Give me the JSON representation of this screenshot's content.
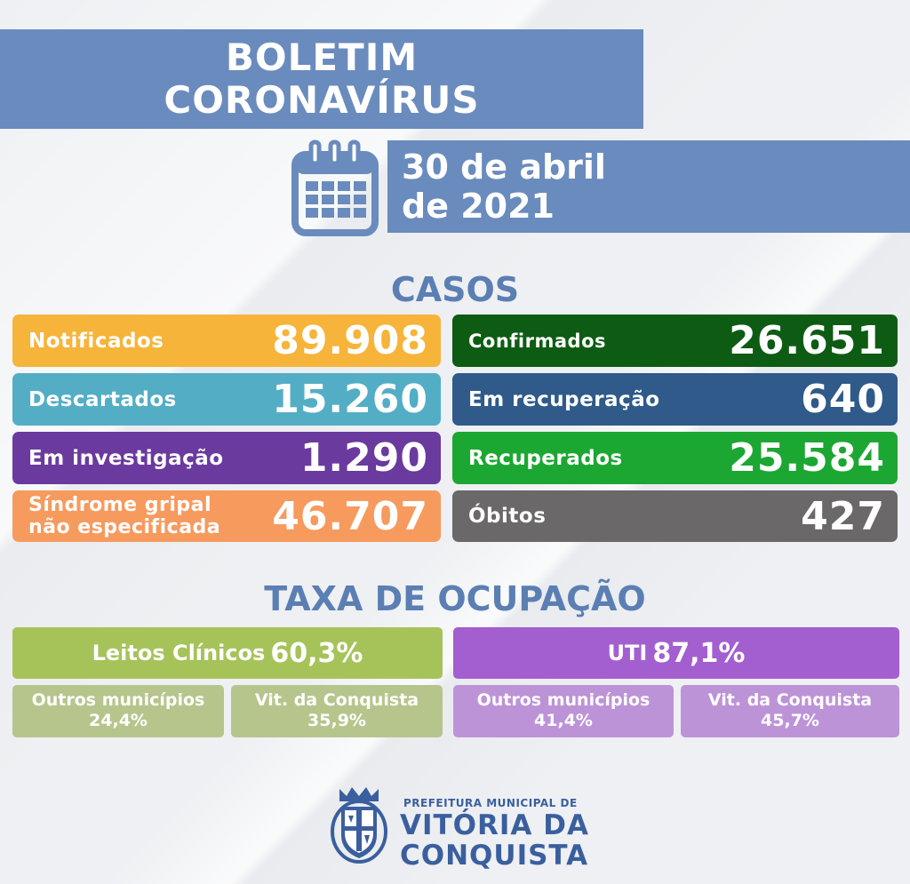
{
  "header": {
    "title_line1": "BOLETIM",
    "title_line2": "CORONAVÍRUS",
    "date_line1": "30 de abril",
    "date_line2": "de 2021"
  },
  "casos": {
    "title": "CASOS",
    "left": [
      {
        "label": "Notificados",
        "value": "89.908",
        "color": "#f6b43a"
      },
      {
        "label": "Descartados",
        "value": "15.260",
        "color": "#53aec5"
      },
      {
        "label": "Em investigação",
        "value": "1.290",
        "color": "#6a3a9e"
      },
      {
        "label_line1": "Síndrome gripal",
        "label_line2": "não especificada",
        "value": "46.707",
        "color": "#f79a5e"
      }
    ],
    "right": [
      {
        "label": "Confirmados",
        "value": "26.651",
        "color": "#0e5c13"
      },
      {
        "label": "Em recuperação",
        "value": "640",
        "color": "#2f5a8a"
      },
      {
        "label": "Recuperados",
        "value": "25.584",
        "color": "#1ca733"
      },
      {
        "label": "Óbitos",
        "value": "427",
        "color": "#6a6868"
      }
    ]
  },
  "ocupacao": {
    "title": "TAXA DE OCUPAÇÃO",
    "leitos": {
      "label": "Leitos Clínicos",
      "value": "60,3%",
      "color": "#a6c35a",
      "sub_color": "#b6c58c",
      "sub": [
        {
          "label": "Outros municípios",
          "value": "24,4%"
        },
        {
          "label": "Vit. da Conquista",
          "value": "35,9%"
        }
      ]
    },
    "uti": {
      "label": "UTI",
      "value": "87,1%",
      "color": "#a35fd0",
      "sub_color": "#bd93d8",
      "sub": [
        {
          "label": "Outros municípios",
          "value": "41,4%"
        },
        {
          "label": "Vit. da Conquista",
          "value": "45,7%"
        }
      ]
    }
  },
  "footer": {
    "small": "PREFEITURA MUNICIPAL DE",
    "big_line1": "VITÓRIA DA",
    "big_line2": "CONQUISTA"
  }
}
